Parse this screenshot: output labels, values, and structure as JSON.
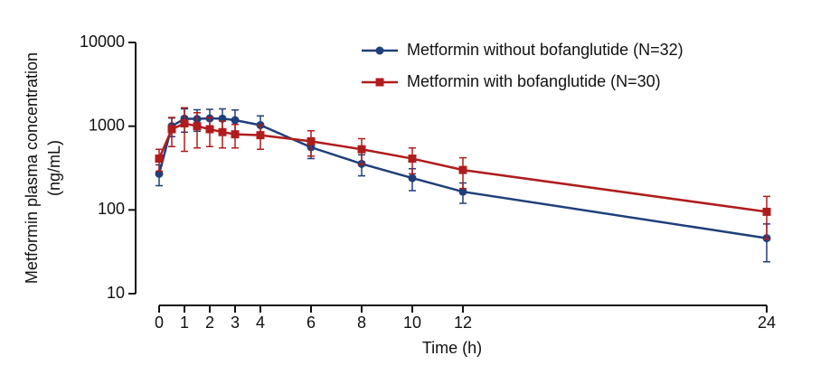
{
  "chart_data": {
    "type": "line",
    "xlabel": "Time (h)",
    "ylabel": [
      "Metformin plasma concentration",
      "(ng/mL)"
    ],
    "x": [
      0,
      0.5,
      1,
      1.5,
      2,
      2.5,
      3,
      4,
      6,
      8,
      10,
      12,
      24
    ],
    "xlim": [
      0,
      24
    ],
    "xticks": [
      0,
      1,
      2,
      3,
      4,
      6,
      8,
      10,
      12,
      24
    ],
    "ylim": [
      10,
      10000
    ],
    "yticks": [
      10,
      100,
      1000,
      10000
    ],
    "yscale": "log",
    "legend": "top-right",
    "series": [
      {
        "name": "Metformin without bofanglutide (N=32)",
        "color": "#1f3f7a",
        "marker": "circle",
        "values": [
          270,
          1000,
          1230,
          1220,
          1240,
          1230,
          1180,
          1030,
          560,
          355,
          240,
          165,
          46
        ],
        "errors": [
          75,
          250,
          380,
          350,
          350,
          380,
          380,
          300,
          150,
          100,
          70,
          45,
          22
        ]
      },
      {
        "name": "Metformin with bofanglutide (N=30)",
        "color": "#b01c1c",
        "marker": "square",
        "values": [
          410,
          920,
          1080,
          1000,
          920,
          850,
          800,
          780,
          660,
          530,
          410,
          300,
          95
        ],
        "errors": [
          120,
          350,
          580,
          450,
          350,
          300,
          250,
          250,
          220,
          180,
          140,
          120,
          50
        ]
      }
    ]
  }
}
